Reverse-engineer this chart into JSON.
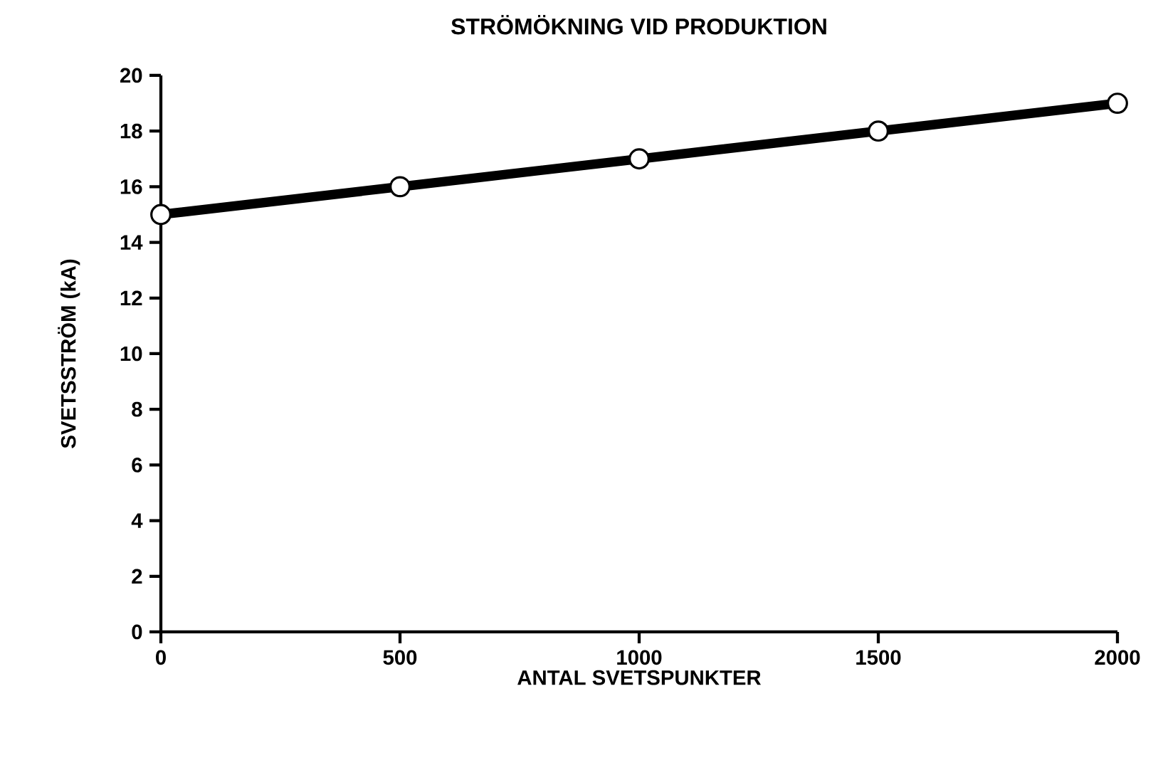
{
  "chart_data": {
    "type": "line",
    "title": "STRÖMÖKNING VID PRODUKTION",
    "xlabel": "ANTAL SVETSPUNKTER",
    "ylabel": "SVETSSTRÖM (kA)",
    "x": [
      0,
      500,
      1000,
      1500,
      2000
    ],
    "series": [
      {
        "color": "#000000",
        "values": [
          15,
          16,
          17,
          18,
          19
        ]
      }
    ],
    "xlim": [
      0,
      2000
    ],
    "xticks": [
      0,
      500,
      1000,
      1500,
      2000
    ],
    "ylim": [
      0,
      20
    ],
    "yticks": [
      0,
      2,
      4,
      6,
      8,
      10,
      12,
      14,
      16,
      18,
      20
    ],
    "marker": "circle",
    "line_style": "solid",
    "grid": false
  }
}
